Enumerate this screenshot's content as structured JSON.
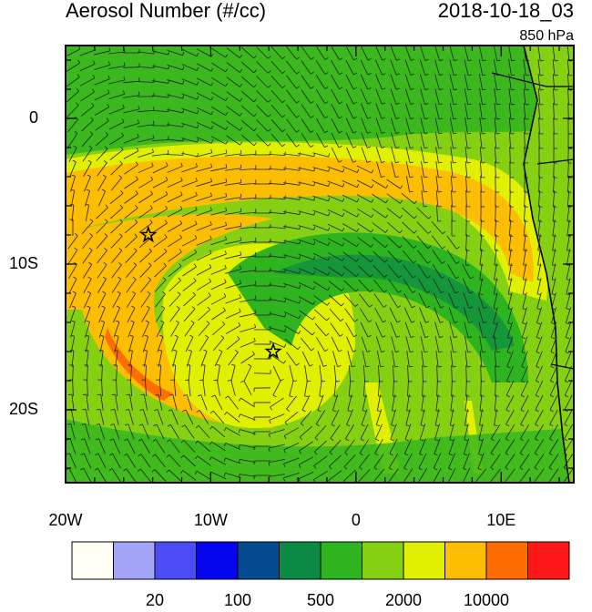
{
  "title": "Aerosol Number (#/cc)",
  "time": "2018-10-18_03",
  "level": "850 hPa",
  "map": {
    "xlim": [
      -20,
      15
    ],
    "ylim": [
      -25,
      5
    ],
    "xticks": [
      {
        "value": -20,
        "label": "20W"
      },
      {
        "value": -10,
        "label": "10W"
      },
      {
        "value": 0,
        "label": "0"
      },
      {
        "value": 10,
        "label": "10E"
      }
    ],
    "yticks": [
      {
        "value": 0,
        "label": "0"
      },
      {
        "value": -10,
        "label": "10S"
      },
      {
        "value": -20,
        "label": "20S"
      }
    ],
    "markers": [
      {
        "lon": -14.3,
        "lat": -8
      },
      {
        "lon": -5.7,
        "lat": -16
      }
    ]
  },
  "colorbar": {
    "colors": [
      "#fffff4",
      "#a4a4f8",
      "#4c4cf6",
      "#0606ee",
      "#054b92",
      "#0b8a44",
      "#2eb41e",
      "#86d014",
      "#e0f000",
      "#fdbd00",
      "#ff6c00",
      "#ff1818"
    ],
    "labels": [
      null,
      "20",
      null,
      "100",
      null,
      "500",
      null,
      "2000",
      null,
      "10000",
      null
    ]
  }
}
